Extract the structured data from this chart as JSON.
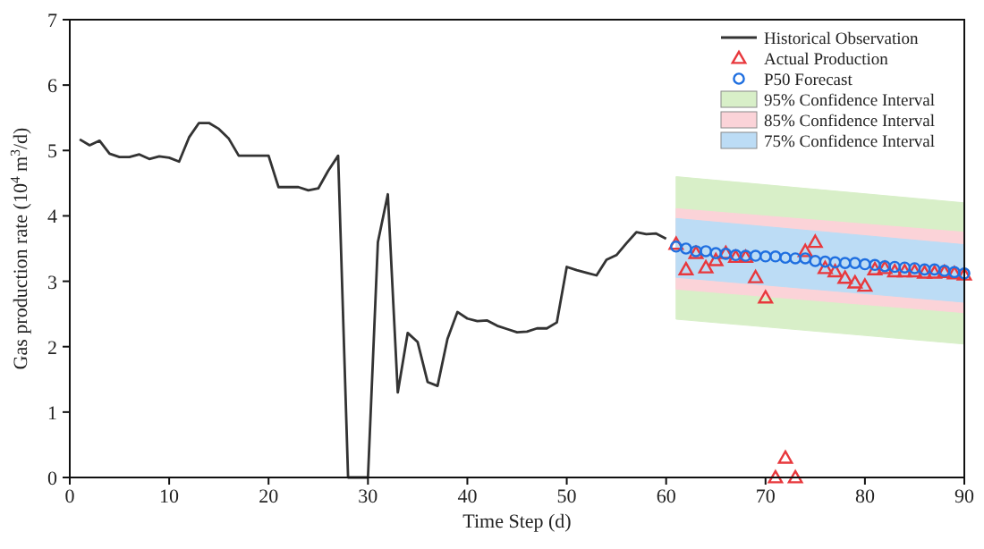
{
  "chart_data": {
    "type": "line",
    "xlabel": "Time Step (d)",
    "ylabel": "Gas production rate (10$^{4}$ m$^{3}$/d)",
    "xlim": [
      0,
      90
    ],
    "xticks": [
      0,
      10,
      20,
      30,
      40,
      50,
      60,
      70,
      80,
      90
    ],
    "ylim": [
      0,
      7
    ],
    "yticks": [
      0,
      1,
      2,
      3,
      4,
      5,
      6,
      7
    ],
    "grid": false,
    "legend": "top right",
    "series": [
      {
        "type": "area",
        "name": "95% Confidence Interval",
        "color": "#d8efc8",
        "x": [
          61,
          90
        ],
        "values": [
          null,
          null
        ],
        "lower": [
          2.42,
          2.04
        ],
        "upper": [
          4.6,
          4.2
        ]
      },
      {
        "type": "area",
        "name": "85% Confidence Interval",
        "color": "#fbd3d8",
        "x": [
          61,
          90
        ],
        "values": [
          null,
          null
        ],
        "lower": [
          2.88,
          2.52
        ],
        "upper": [
          4.11,
          3.75
        ]
      },
      {
        "type": "area",
        "name": "75% Confidence Interval",
        "color": "#bcdcf5",
        "x": [
          61,
          90
        ],
        "values": [
          null,
          null
        ],
        "lower": [
          3.06,
          2.68
        ],
        "upper": [
          3.96,
          3.56
        ]
      },
      {
        "name": "Historical Observation",
        "color": "#333333",
        "marker": "none",
        "line_style": "solid",
        "x": [
          1,
          2,
          3,
          4,
          5,
          6,
          7,
          8,
          9,
          10,
          11,
          12,
          13,
          14,
          15,
          16,
          17,
          18,
          19,
          20,
          21,
          22,
          23,
          24,
          25,
          26,
          27,
          28,
          29,
          30,
          31,
          32,
          33,
          34,
          35,
          36,
          37,
          38,
          39,
          40,
          41,
          42,
          43,
          44,
          45,
          46,
          47,
          48,
          49,
          50,
          51,
          52,
          53,
          54,
          55,
          56,
          57,
          58,
          59,
          60
        ],
        "values": [
          5.17,
          5.08,
          5.15,
          4.95,
          4.9,
          4.9,
          4.94,
          4.87,
          4.91,
          4.89,
          4.83,
          5.2,
          5.42,
          5.42,
          5.33,
          5.18,
          4.92,
          4.92,
          4.92,
          4.92,
          4.44,
          4.44,
          4.44,
          4.39,
          4.42,
          4.69,
          4.92,
          0,
          0,
          0,
          3.6,
          4.33,
          1.3,
          2.21,
          2.07,
          1.46,
          1.4,
          2.12,
          2.53,
          2.43,
          2.39,
          2.4,
          2.32,
          2.27,
          2.22,
          2.23,
          2.28,
          2.28,
          2.37,
          3.22,
          3.17,
          3.13,
          3.09,
          3.33,
          3.4,
          3.58,
          3.75,
          3.72,
          3.73,
          3.65
        ]
      },
      {
        "type": "scatter",
        "name": "Actual Production",
        "color": "#e8383d",
        "marker": "triangle",
        "x": [
          61,
          62,
          63,
          64,
          65,
          66,
          67,
          68,
          69,
          70,
          71,
          72,
          73,
          74,
          75,
          76,
          77,
          78,
          79,
          80,
          81,
          82,
          83,
          84,
          85,
          86,
          87,
          88,
          89,
          90
        ],
        "values": [
          3.57,
          3.18,
          3.43,
          3.21,
          3.32,
          3.43,
          3.37,
          3.37,
          3.06,
          2.75,
          0,
          0.3,
          0,
          3.46,
          3.6,
          3.2,
          3.15,
          3.05,
          2.98,
          2.93,
          3.18,
          3.2,
          3.15,
          3.15,
          3.15,
          3.13,
          3.13,
          3.14,
          3.12,
          3.1
        ]
      },
      {
        "type": "scatter",
        "name": "P50 Forecast",
        "color": "#1f6fe0",
        "marker": "circle",
        "x": [
          61,
          62,
          63,
          64,
          65,
          66,
          67,
          68,
          69,
          70,
          71,
          72,
          73,
          74,
          75,
          76,
          77,
          78,
          79,
          80,
          81,
          82,
          83,
          84,
          85,
          86,
          87,
          88,
          89,
          90
        ],
        "values": [
          3.53,
          3.5,
          3.46,
          3.46,
          3.43,
          3.42,
          3.4,
          3.39,
          3.39,
          3.38,
          3.38,
          3.36,
          3.35,
          3.35,
          3.31,
          3.3,
          3.29,
          3.28,
          3.28,
          3.26,
          3.25,
          3.23,
          3.22,
          3.21,
          3.2,
          3.18,
          3.18,
          3.16,
          3.14,
          3.12
        ]
      }
    ]
  }
}
